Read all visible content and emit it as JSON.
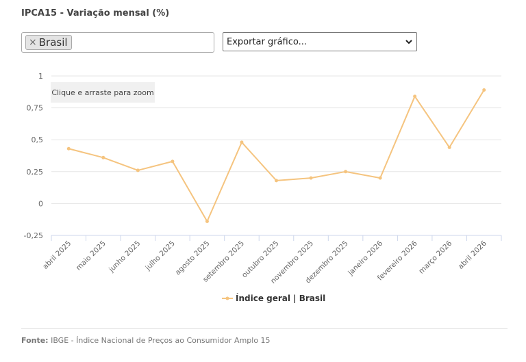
{
  "title": "IPCA15 - Variação mensal (%)",
  "filter": {
    "tag_label": "Brasil",
    "remove_glyph": "×"
  },
  "export": {
    "label": "Exportar gráfico..."
  },
  "zoom_hint": "Clique e arraste para zoom",
  "source": {
    "label": "Fonte:",
    "text": "IBGE - Índice Nacional de Preços ao Consumidor Amplo 15"
  },
  "colors": {
    "series": "#f5c47f",
    "grid": "#e6e6e6",
    "axis": "#ccd6eb",
    "label": "#666666"
  },
  "chart_data": {
    "type": "line",
    "title": "",
    "xlabel": "",
    "ylabel": "",
    "ylim": [
      -0.25,
      1
    ],
    "yticks": [
      -0.25,
      0,
      0.25,
      0.5,
      0.75,
      1
    ],
    "ytick_labels": [
      "-0,25",
      "0",
      "0,25",
      "0,5",
      "0,75",
      "1"
    ],
    "grid": true,
    "legend": "bottom-center",
    "categories": [
      "abril 2025",
      "maio 2025",
      "junho 2025",
      "julho 2025",
      "agosto 2025",
      "setembro 2025",
      "outubro 2025",
      "novembro 2025",
      "dezembro 2025",
      "janeiro 2026",
      "fevereiro 2026",
      "março 2026",
      "abril 2026"
    ],
    "series": [
      {
        "name": "Índice geral | Brasil",
        "values": [
          0.43,
          0.36,
          0.26,
          0.33,
          -0.14,
          0.48,
          0.18,
          0.2,
          0.25,
          0.2,
          0.84,
          0.44,
          0.89
        ]
      }
    ]
  }
}
